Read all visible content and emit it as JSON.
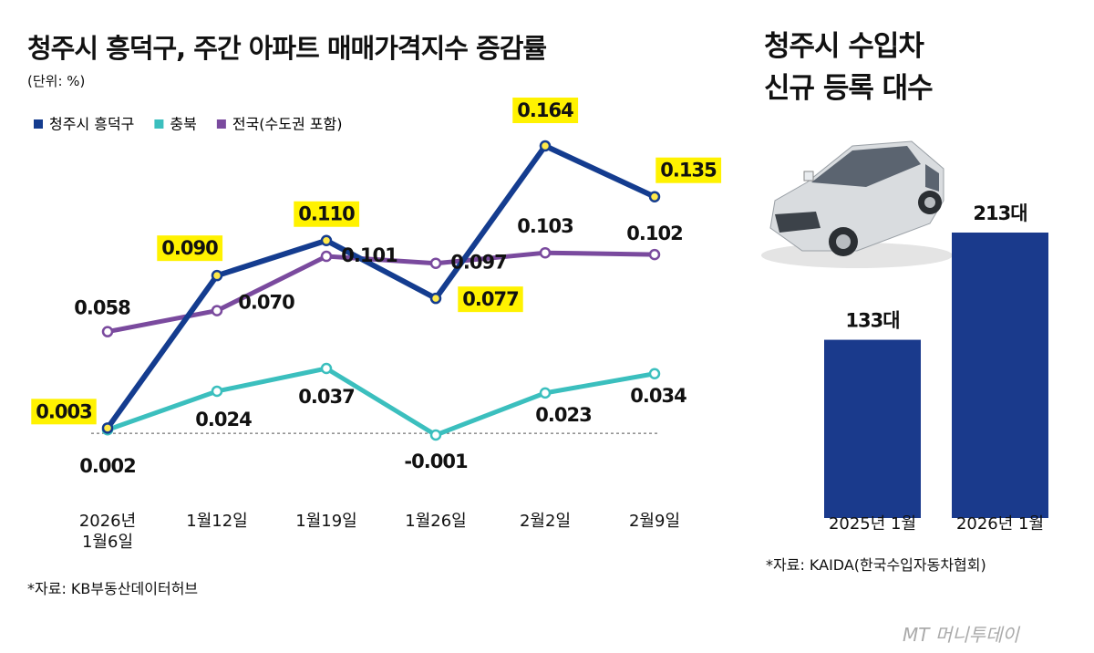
{
  "chart_data": [
    {
      "type": "line",
      "title": "청주시 흥덕구, 주간 아파트 매매가격지수 증감률",
      "subtitle": "(단위: %)",
      "categories": [
        "2026년\n1월6일",
        "1월12일",
        "1월19일",
        "1월26일",
        "2월2일",
        "2월9일"
      ],
      "series": [
        {
          "name": "청주시 흥덕구",
          "color": "#143c8f",
          "values": [
            0.003,
            0.09,
            0.11,
            0.077,
            0.164,
            0.135
          ],
          "value_labels": [
            "0.003",
            "0.090",
            "0.110",
            "0.077",
            "0.164",
            "0.135"
          ]
        },
        {
          "name": "충북",
          "color": "#3bbfbe",
          "values": [
            0.002,
            0.024,
            0.037,
            -0.001,
            0.023,
            0.034
          ],
          "value_labels": [
            "0.002",
            "0.024",
            "0.037",
            "-0.001",
            "0.023",
            "0.034"
          ]
        },
        {
          "name": "전국(수도권 포함)",
          "color": "#7a4a9e",
          "values": [
            0.058,
            0.07,
            0.101,
            0.097,
            0.103,
            0.102
          ],
          "value_labels": [
            "0.058",
            "0.070",
            "0.101",
            "0.097",
            "0.103",
            "0.102"
          ]
        }
      ],
      "source": "*자료: KB부동산데이터허브"
    },
    {
      "type": "bar",
      "title": "청주시 수입차\n신규 등록 대수",
      "categories": [
        "2025년 1월",
        "2026년 1월"
      ],
      "values": [
        133,
        213
      ],
      "value_labels": [
        "133대",
        "213대"
      ],
      "color": "#1a3a8c",
      "source": "*자료: KAIDA(한국수입자동차협회)"
    }
  ],
  "watermark": "MT 머니투데이"
}
